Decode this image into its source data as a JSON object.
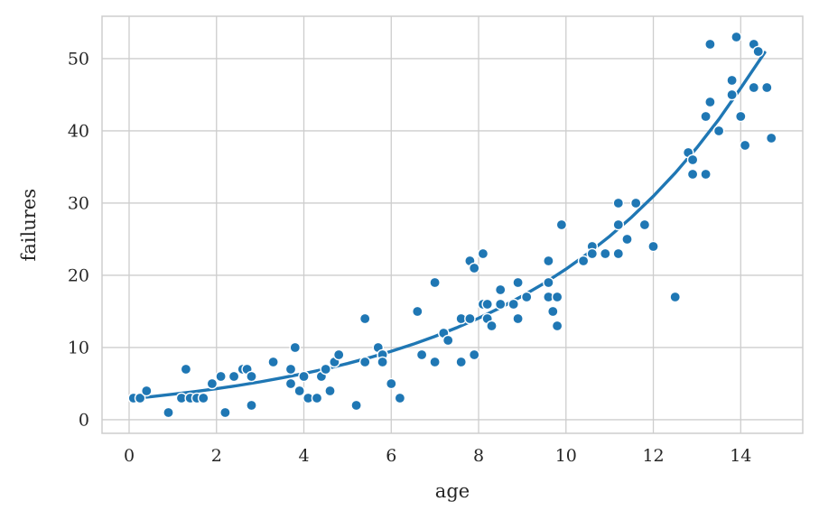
{
  "chart_data": {
    "type": "scatter",
    "title": "",
    "xlabel": "age",
    "ylabel": "failures",
    "x_ticks": [
      0,
      2,
      4,
      6,
      8,
      10,
      12,
      14
    ],
    "y_ticks": [
      0,
      10,
      20,
      30,
      40,
      50
    ],
    "xlim": [
      -0.62,
      15.42
    ],
    "ylim": [
      -1.88,
      55.87
    ],
    "grid": true,
    "legend": "none",
    "marker_color": "#1f77b4",
    "marker_edge_color": "#ffffff",
    "line_color": "#1f77b4",
    "grid_color": "#cdcdcd",
    "text_color": "#262626",
    "background_color": "#ffffff",
    "points": [
      [
        0.1,
        3
      ],
      [
        0.25,
        3
      ],
      [
        0.4,
        4
      ],
      [
        0.9,
        1
      ],
      [
        1.2,
        3
      ],
      [
        1.3,
        7
      ],
      [
        1.4,
        3
      ],
      [
        1.55,
        3
      ],
      [
        1.7,
        3
      ],
      [
        1.9,
        5
      ],
      [
        2.1,
        6
      ],
      [
        2.2,
        1
      ],
      [
        2.4,
        6
      ],
      [
        2.6,
        7
      ],
      [
        2.7,
        7
      ],
      [
        2.8,
        6
      ],
      [
        2.8,
        2
      ],
      [
        3.3,
        8
      ],
      [
        3.7,
        5
      ],
      [
        3.7,
        7
      ],
      [
        3.8,
        10
      ],
      [
        3.9,
        4
      ],
      [
        4.0,
        6
      ],
      [
        4.1,
        3
      ],
      [
        4.3,
        3
      ],
      [
        4.4,
        6
      ],
      [
        4.5,
        7
      ],
      [
        4.6,
        4
      ],
      [
        4.7,
        8
      ],
      [
        4.8,
        9
      ],
      [
        5.2,
        2
      ],
      [
        5.4,
        8
      ],
      [
        5.4,
        14
      ],
      [
        5.7,
        10
      ],
      [
        5.8,
        9
      ],
      [
        5.8,
        8
      ],
      [
        6.0,
        5
      ],
      [
        6.2,
        3
      ],
      [
        6.6,
        15
      ],
      [
        6.7,
        9
      ],
      [
        7.0,
        8
      ],
      [
        7.0,
        19
      ],
      [
        7.2,
        12
      ],
      [
        7.3,
        11
      ],
      [
        7.6,
        14
      ],
      [
        7.6,
        8
      ],
      [
        7.8,
        14
      ],
      [
        7.8,
        22
      ],
      [
        7.9,
        9
      ],
      [
        7.9,
        21
      ],
      [
        8.1,
        23
      ],
      [
        8.1,
        16
      ],
      [
        8.2,
        16
      ],
      [
        8.2,
        14
      ],
      [
        8.3,
        13
      ],
      [
        8.5,
        16
      ],
      [
        8.5,
        18
      ],
      [
        8.8,
        16
      ],
      [
        8.9,
        14
      ],
      [
        8.9,
        19
      ],
      [
        9.1,
        17
      ],
      [
        9.6,
        19
      ],
      [
        9.6,
        17
      ],
      [
        9.6,
        22
      ],
      [
        9.7,
        15
      ],
      [
        9.8,
        17
      ],
      [
        9.8,
        13
      ],
      [
        9.9,
        27
      ],
      [
        10.4,
        22
      ],
      [
        10.6,
        24
      ],
      [
        10.6,
        23
      ],
      [
        10.9,
        23
      ],
      [
        11.2,
        23
      ],
      [
        11.2,
        30
      ],
      [
        11.2,
        27
      ],
      [
        11.4,
        25
      ],
      [
        11.6,
        30
      ],
      [
        11.8,
        27
      ],
      [
        12.0,
        24
      ],
      [
        12.5,
        17
      ],
      [
        12.8,
        37
      ],
      [
        12.9,
        36
      ],
      [
        12.9,
        34
      ],
      [
        13.2,
        34
      ],
      [
        13.2,
        42
      ],
      [
        13.3,
        44
      ],
      [
        13.3,
        52
      ],
      [
        13.5,
        40
      ],
      [
        13.8,
        47
      ],
      [
        13.8,
        45
      ],
      [
        13.9,
        53
      ],
      [
        14.0,
        42
      ],
      [
        14.1,
        38
      ],
      [
        14.3,
        52
      ],
      [
        14.3,
        46
      ],
      [
        14.4,
        51
      ],
      [
        14.6,
        46
      ],
      [
        14.7,
        39
      ]
    ],
    "trend": [
      [
        0.05,
        2.93
      ],
      [
        0.5,
        3.2
      ],
      [
        1.0,
        3.53
      ],
      [
        1.5,
        3.9
      ],
      [
        2.0,
        4.3
      ],
      [
        2.5,
        4.75
      ],
      [
        3.0,
        5.24
      ],
      [
        3.5,
        5.79
      ],
      [
        4.0,
        6.39
      ],
      [
        4.5,
        7.05
      ],
      [
        5.0,
        7.78
      ],
      [
        5.5,
        8.59
      ],
      [
        6.0,
        9.48
      ],
      [
        6.5,
        10.46
      ],
      [
        7.0,
        11.55
      ],
      [
        7.5,
        12.74
      ],
      [
        8.0,
        14.06
      ],
      [
        8.5,
        15.52
      ],
      [
        9.0,
        17.13
      ],
      [
        9.5,
        18.9
      ],
      [
        10.0,
        20.86
      ],
      [
        10.5,
        23.02
      ],
      [
        11.0,
        25.41
      ],
      [
        11.5,
        28.04
      ],
      [
        12.0,
        30.95
      ],
      [
        12.5,
        34.16
      ],
      [
        13.0,
        37.7
      ],
      [
        13.5,
        41.6
      ],
      [
        14.0,
        45.92
      ],
      [
        14.55,
        50.85
      ]
    ]
  }
}
